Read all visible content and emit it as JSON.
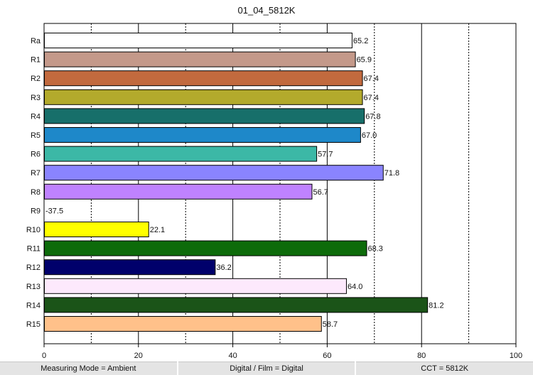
{
  "chart_data": {
    "type": "bar",
    "orientation": "horizontal",
    "title": "01_04_5812K",
    "categories": [
      "Ra",
      "R1",
      "R2",
      "R3",
      "R4",
      "R5",
      "R6",
      "R7",
      "R8",
      "R9",
      "R10",
      "R11",
      "R12",
      "R13",
      "R14",
      "R15"
    ],
    "values": [
      65.2,
      65.9,
      67.4,
      67.4,
      67.8,
      67.0,
      57.7,
      71.8,
      56.7,
      -37.5,
      22.1,
      68.3,
      36.2,
      64.0,
      81.2,
      58.7
    ],
    "value_labels": [
      "65.2",
      "65.9",
      "67.4",
      "67.4",
      "67.8",
      "67.0",
      "57.7",
      "71.8",
      "56.7",
      "-37.5",
      "22.1",
      "68.3",
      "36.2",
      "64.0",
      "81.2",
      "58.7"
    ],
    "colors": [
      "#ffffff",
      "#c4998a",
      "#c26a3e",
      "#b3aa2c",
      "#176f6a",
      "#1e88c9",
      "#3cb8a6",
      "#8a84ff",
      "#bf82ff",
      "#ffffff",
      "#ffff00",
      "#0d6b0a",
      "#00006b",
      "#fde9fc",
      "#1b5418",
      "#ffc18a"
    ],
    "xlim": [
      0,
      100
    ],
    "xticks": [
      0,
      20,
      40,
      60,
      80,
      100
    ],
    "xtick_labels": [
      "0",
      "20",
      "40",
      "60",
      "80",
      "100"
    ],
    "grid_major": [
      20,
      40,
      60,
      80
    ],
    "grid_minor": [
      10,
      30,
      50,
      70,
      90
    ],
    "xlabel": "",
    "ylabel": ""
  },
  "status_bar": {
    "measuring_mode": "Measuring Mode = Ambient",
    "capture": "Digital / Film = Digital",
    "cct": "CCT = 5812K"
  }
}
